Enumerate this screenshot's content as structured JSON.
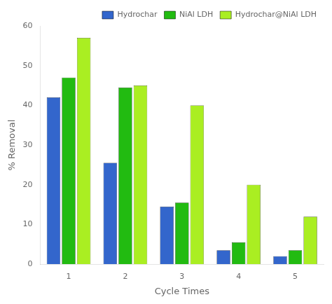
{
  "chart_data": {
    "type": "bar",
    "categories": [
      "1",
      "2",
      "3",
      "4",
      "5"
    ],
    "series": [
      {
        "name": "Hydrochar",
        "color": "#3366CC",
        "values": [
          42,
          25.5,
          14.5,
          3.5,
          2
        ]
      },
      {
        "name": "NiAl LDH",
        "color": "#22BB11",
        "values": [
          47,
          44.5,
          15.5,
          5.5,
          3.5
        ]
      },
      {
        "name": "Hydrochar@NiAl LDH",
        "color": "#AAEE22",
        "values": [
          57,
          45,
          40,
          20,
          12
        ]
      }
    ],
    "xlabel": "Cycle Times",
    "ylabel": "% Removal",
    "ylim": [
      0,
      60
    ],
    "yticks": [
      0,
      10,
      20,
      30,
      40,
      50,
      60
    ],
    "grid": false,
    "legend": "upper right"
  }
}
